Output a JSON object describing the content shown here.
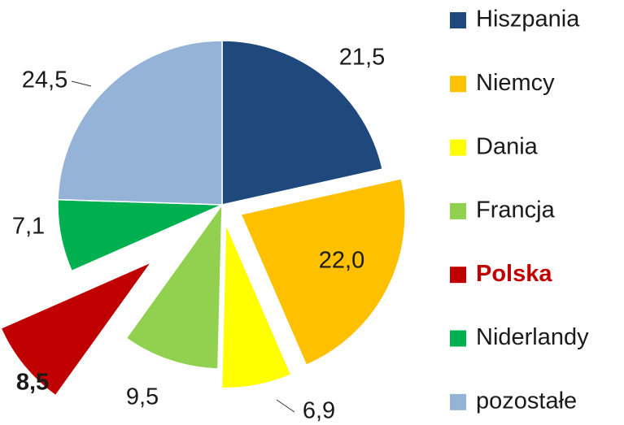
{
  "chart_data": {
    "type": "pie",
    "categories": [
      "Hiszpania",
      "Niemcy",
      "Dania",
      "Francja",
      "Polska",
      "Niderlandy",
      "pozostałe"
    ],
    "values": [
      21.5,
      22.0,
      6.9,
      9.5,
      8.5,
      7.1,
      24.5
    ],
    "value_labels": [
      "21,5",
      "22,0",
      "6,9",
      "9,5",
      "8,5",
      "7,1",
      "24,5"
    ],
    "colors": [
      "#1f497d",
      "#ffc000",
      "#ffff00",
      "#92d050",
      "#c00000",
      "#00b050",
      "#95b3d7"
    ],
    "legend": "right"
  }
}
